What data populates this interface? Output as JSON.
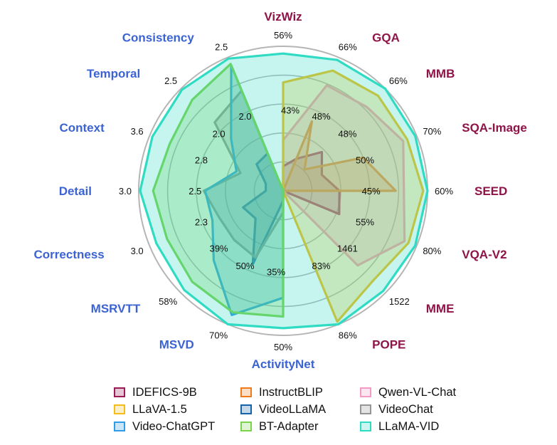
{
  "chart_data": {
    "type": "radar",
    "axes": [
      {
        "name": "VizWiz",
        "group": "image",
        "outer_tick": "56%",
        "inner_tick": "43%"
      },
      {
        "name": "GQA",
        "group": "image",
        "outer_tick": "66%",
        "inner_tick": "48%"
      },
      {
        "name": "MMB",
        "group": "image",
        "outer_tick": "66%",
        "inner_tick": "48%"
      },
      {
        "name": "SQA-Image",
        "group": "image",
        "outer_tick": "70%",
        "inner_tick": "50%"
      },
      {
        "name": "SEED",
        "group": "image",
        "outer_tick": "60%",
        "inner_tick": "45%"
      },
      {
        "name": "VQA-V2",
        "group": "image",
        "outer_tick": "80%",
        "inner_tick": "55%"
      },
      {
        "name": "MME",
        "group": "image",
        "outer_tick": "1522",
        "inner_tick": "1461"
      },
      {
        "name": "POPE",
        "group": "image",
        "outer_tick": "86%",
        "inner_tick": "83%"
      },
      {
        "name": "ActivityNet",
        "group": "video",
        "outer_tick": "50%",
        "inner_tick": "35%"
      },
      {
        "name": "MSVD",
        "group": "video",
        "outer_tick": "70%",
        "inner_tick": "50%"
      },
      {
        "name": "MSRVTT",
        "group": "video",
        "outer_tick": "58%",
        "inner_tick": "39%"
      },
      {
        "name": "Correctness",
        "group": "video",
        "outer_tick": "3.0",
        "inner_tick": "2.3"
      },
      {
        "name": "Detail",
        "group": "video",
        "outer_tick": "3.0",
        "inner_tick": "2.5"
      },
      {
        "name": "Context",
        "group": "video",
        "outer_tick": "3.6",
        "inner_tick": "2.8"
      },
      {
        "name": "Temporal",
        "group": "video",
        "outer_tick": "2.5",
        "inner_tick": "2.0"
      },
      {
        "name": "Consistency",
        "group": "video",
        "outer_tick": "2.5",
        "inner_tick": "2.0"
      }
    ],
    "radial_scale": "normalized 0-1 per axis; outer ring = 1.0",
    "series": [
      {
        "name": "IDEFICS-9B",
        "color": "#9b1c55",
        "values": [
          0.17,
          0.24,
          0.38,
          0.29,
          0.39,
          0.42,
          null,
          null,
          null,
          null,
          null,
          null,
          null,
          null,
          null,
          null
        ]
      },
      {
        "name": "InstructBLIP",
        "color": "#ee7a1a",
        "values": [
          null,
          0.52,
          0.21,
          0.6,
          0.78,
          null,
          null,
          null,
          null,
          null,
          null,
          null,
          null,
          null,
          null,
          null
        ]
      },
      {
        "name": "Qwen-VL-Chat",
        "color": "#f59ac5",
        "values": [
          0.35,
          0.79,
          0.82,
          0.9,
          null,
          0.91,
          0.73,
          null,
          null,
          null,
          null,
          null,
          null,
          null,
          null,
          null
        ]
      },
      {
        "name": "LLaVA-1.5",
        "color": "#f4bd1a",
        "values": [
          0.75,
          0.9,
          0.93,
          0.93,
          0.97,
          0.94,
          0.88,
          0.98,
          null,
          null,
          null,
          null,
          null,
          null,
          null,
          null
        ]
      },
      {
        "name": "VideoLLaMA",
        "color": "#1763a8",
        "values": [
          null,
          null,
          null,
          null,
          null,
          null,
          null,
          null,
          0.07,
          0.55,
          0.27,
          0.3,
          0.12,
          0.13,
          0.26,
          0.28
        ]
      },
      {
        "name": "VideoChat",
        "color": "#959595",
        "values": [
          null,
          null,
          null,
          null,
          null,
          null,
          null,
          null,
          0.15,
          0.5,
          0.48,
          0.48,
          0.55,
          0.32,
          0.67,
          0.75
        ]
      },
      {
        "name": "Video-ChatGPT",
        "color": "#2f9ce7",
        "values": [
          null,
          null,
          null,
          null,
          null,
          null,
          null,
          null,
          0.74,
          0.93,
          0.68,
          0.53,
          0.54,
          0.35,
          0.51,
          0.94
        ]
      },
      {
        "name": "BT-Adapter",
        "color": "#7ad34b",
        "values": [
          null,
          null,
          null,
          null,
          null,
          null,
          null,
          null,
          0.87,
          0.91,
          0.89,
          0.87,
          0.9,
          0.85,
          0.89,
          0.95
        ]
      },
      {
        "name": "LLaMA-VID",
        "color": "#2fdcc3",
        "values": [
          0.95,
          0.98,
          1.0,
          0.99,
          1.0,
          0.99,
          0.98,
          1.0,
          0.95,
          1.0,
          0.97,
          0.95,
          0.99,
          0.98,
          0.99,
          0.99
        ]
      }
    ],
    "legend": [
      [
        "IDEFICS-9B",
        "InstructBLIP",
        "Qwen-VL-Chat"
      ],
      [
        "LLaVA-1.5",
        "VideoLLaMA",
        "VideoChat"
      ],
      [
        "Video-ChatGPT",
        "BT-Adapter",
        "LLaMA-VID"
      ]
    ],
    "grid": true,
    "legend_position": "bottom",
    "colors": {
      "image_label": "#8e1448",
      "video_label": "#3b63d3",
      "grid": "#b5b5b5"
    }
  }
}
